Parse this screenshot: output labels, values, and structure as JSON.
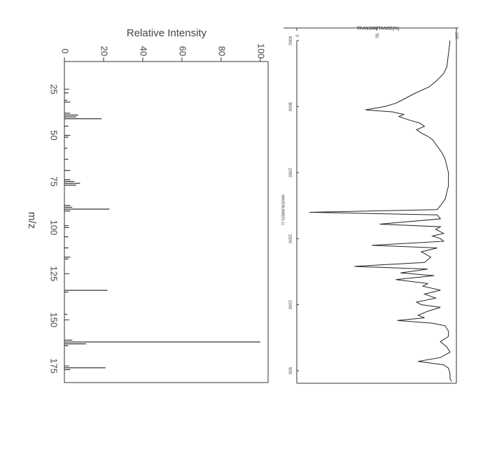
{
  "chart_data": [
    {
      "type": "bar",
      "title": "Relative Intensity",
      "xlabel": "m/z",
      "x": [
        27,
        31,
        32,
        38,
        39,
        40,
        41,
        45,
        50,
        51,
        57,
        63,
        69,
        74,
        75,
        76,
        77,
        88,
        89,
        90,
        91,
        99,
        105,
        111,
        116,
        117,
        134,
        135,
        147,
        161,
        162,
        163,
        164,
        176,
        177
      ],
      "values": [
        2,
        1.5,
        3,
        3,
        7,
        6,
        19,
        2,
        3,
        2,
        1.5,
        2,
        3,
        3,
        5,
        8,
        6,
        3,
        4,
        23,
        3,
        2,
        2,
        2,
        3,
        2,
        22,
        2,
        1.5,
        4,
        100,
        11,
        2,
        21,
        3
      ],
      "color": "#333333",
      "xlim": [
        10,
        184
      ],
      "xticks": [
        25,
        50,
        75,
        100,
        125,
        150,
        175
      ],
      "ylim": [
        0,
        104
      ],
      "yticks": [
        0,
        20,
        40,
        60,
        80,
        100
      ]
    },
    {
      "type": "line",
      "title": "TRANSMITTANCE(%)",
      "xlabel": "WAVENUMBER(-1)",
      "x": [
        4000,
        3800,
        3600,
        3500,
        3400,
        3300,
        3200,
        3100,
        3050,
        3000,
        2950,
        2920,
        2880,
        2850,
        2800,
        2750,
        2700,
        2650,
        2600,
        2550,
        2500,
        2400,
        2300,
        2200,
        2100,
        2000,
        1900,
        1800,
        1750,
        1720,
        1700,
        1680,
        1650,
        1610,
        1590,
        1570,
        1540,
        1520,
        1500,
        1480,
        1450,
        1430,
        1400,
        1360,
        1320,
        1290,
        1270,
        1240,
        1220,
        1190,
        1160,
        1140,
        1110,
        1080,
        1050,
        1020,
        1000,
        980,
        950,
        920,
        900,
        880,
        860,
        840,
        800,
        760,
        720,
        680,
        640,
        600,
        570,
        545,
        520,
        480,
        440,
        420
      ],
      "values": [
        96,
        95,
        94,
        92,
        88,
        83,
        74,
        66,
        62,
        55,
        43,
        60,
        67,
        64,
        70,
        77,
        80,
        75,
        78,
        82,
        85,
        88,
        91,
        93,
        94,
        95,
        95,
        93,
        90,
        88,
        8,
        88,
        90,
        52,
        90,
        87,
        92,
        85,
        90,
        92,
        47,
        88,
        78,
        84,
        80,
        36,
        82,
        65,
        86,
        62,
        82,
        79,
        90,
        80,
        87,
        75,
        78,
        90,
        82,
        76,
        80,
        63,
        85,
        93,
        95,
        95,
        90,
        94,
        96,
        90,
        76,
        92,
        95,
        96,
        96,
        97
      ],
      "color": "#222222",
      "xlim": [
        4000,
        405
      ],
      "xticks": [
        4000,
        3000,
        2000,
        1500,
        1000,
        500
      ],
      "ylim": [
        0,
        100
      ],
      "yticks": [
        0,
        50,
        100
      ]
    }
  ]
}
